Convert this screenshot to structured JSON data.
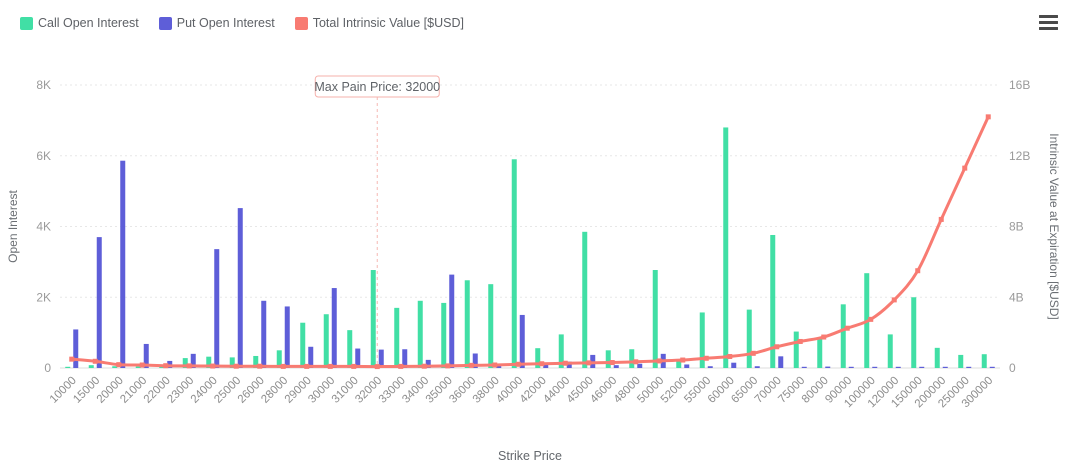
{
  "widget": {
    "legend": [
      {
        "label": "Call Open Interest",
        "color": "#41DFA5"
      },
      {
        "label": "Put Open Interest",
        "color": "#5E5ED8"
      },
      {
        "label": "Total Intrinsic Value [$USD]",
        "color": "#F87B72"
      }
    ]
  },
  "chart_data": {
    "type": "bar",
    "title": "",
    "legend_position": "top-left",
    "grid": true,
    "categories": [
      "10000",
      "15000",
      "20000",
      "21000",
      "22000",
      "23000",
      "24000",
      "25000",
      "26000",
      "28000",
      "29000",
      "30000",
      "31000",
      "32000",
      "33000",
      "34000",
      "35000",
      "36000",
      "38000",
      "40000",
      "42000",
      "44000",
      "45000",
      "46000",
      "48000",
      "50000",
      "52000",
      "55000",
      "60000",
      "65000",
      "70000",
      "75000",
      "80000",
      "90000",
      "100000",
      "120000",
      "150000",
      "200000",
      "250000",
      "300000"
    ],
    "series": [
      {
        "name": "Call Open Interest",
        "type": "bar",
        "y_axis": "left",
        "color": "#41DFA5",
        "values": [
          30,
          80,
          50,
          40,
          100,
          280,
          320,
          300,
          340,
          500,
          1280,
          1520,
          1070,
          2770,
          1700,
          1900,
          1840,
          2480,
          2370,
          5900,
          560,
          950,
          3850,
          500,
          530,
          2770,
          250,
          1570,
          6800,
          1650,
          3760,
          1030,
          840,
          1800,
          2680,
          950,
          2000,
          570,
          370,
          390
        ]
      },
      {
        "name": "Put Open Interest",
        "type": "bar",
        "y_axis": "left",
        "color": "#5E5ED8",
        "values": [
          1090,
          3700,
          5860,
          680,
          200,
          400,
          3360,
          4520,
          1900,
          1740,
          600,
          2260,
          550,
          520,
          530,
          230,
          2640,
          410,
          120,
          1500,
          150,
          180,
          370,
          80,
          120,
          400,
          100,
          50,
          150,
          50,
          330,
          20,
          40,
          20,
          30,
          10,
          20,
          20,
          10,
          10
        ]
      },
      {
        "name": "Total Intrinsic Value [$USD]",
        "type": "line",
        "y_axis": "right",
        "color": "#F87B72",
        "values_billions": [
          0.5,
          0.38,
          0.19,
          0.17,
          0.13,
          0.12,
          0.11,
          0.1,
          0.1,
          0.09,
          0.09,
          0.09,
          0.09,
          0.08,
          0.09,
          0.1,
          0.12,
          0.15,
          0.17,
          0.21,
          0.24,
          0.27,
          0.29,
          0.31,
          0.35,
          0.4,
          0.45,
          0.55,
          0.65,
          0.83,
          1.2,
          1.5,
          1.75,
          2.25,
          2.75,
          3.85,
          5.5,
          8.4,
          11.3,
          14.2
        ]
      }
    ],
    "x_axis": {
      "label": "Strike Price"
    },
    "left_axis": {
      "label": "Open Interest",
      "ticks": [
        "0",
        "2K",
        "4K",
        "6K",
        "8K"
      ],
      "min": 0,
      "max": 8000
    },
    "right_axis": {
      "label": "Intrinsic Value at Expiration [$USD]",
      "ticks": [
        "0",
        "4B",
        "8B",
        "12B",
        "16B"
      ],
      "min": 0,
      "max": 16
    },
    "annotation": {
      "text": "Max Pain Price: 32000",
      "strike": "32000"
    }
  }
}
